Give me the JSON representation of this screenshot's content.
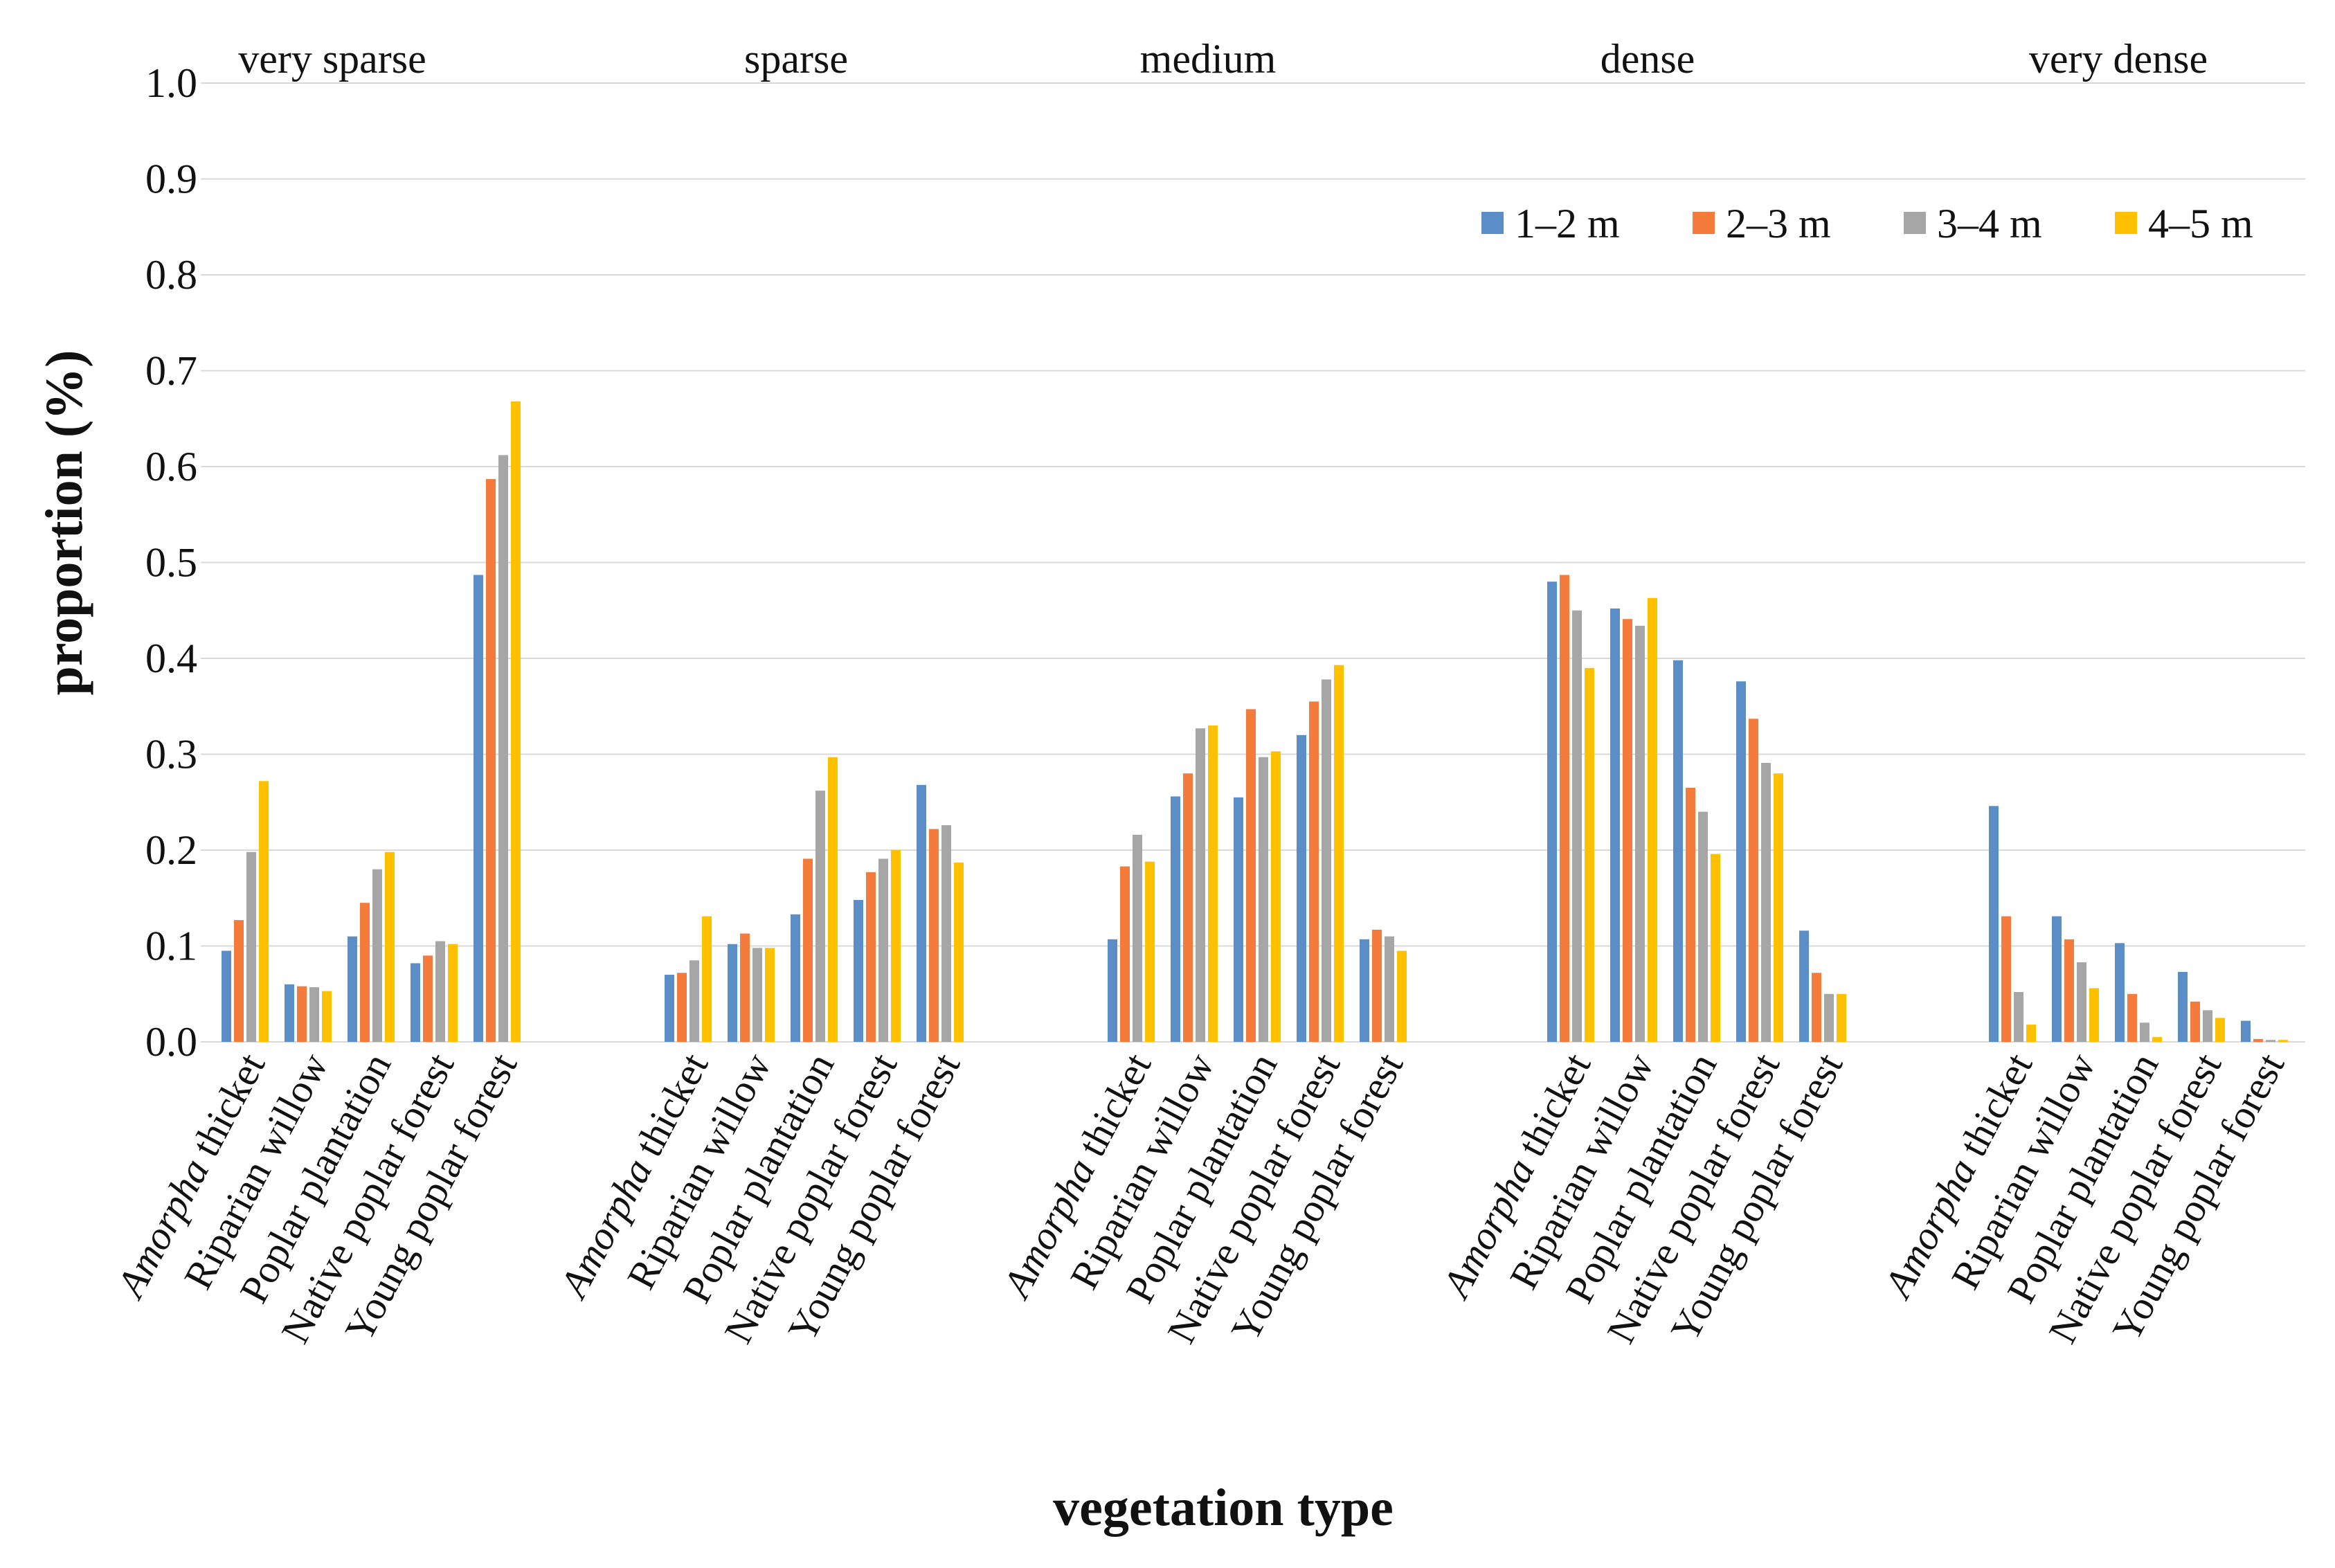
{
  "chart_data": {
    "type": "bar",
    "title": "",
    "xlabel": "vegetation type",
    "ylabel": "proportion (%)",
    "ylim": [
      0,
      1.0
    ],
    "yticks": [
      0.0,
      0.1,
      0.2,
      0.3,
      0.4,
      0.5,
      0.6,
      0.7,
      0.8,
      0.9,
      1.0
    ],
    "ytick_labels": [
      "0.0",
      "0.1",
      "0.2",
      "0.3",
      "0.4",
      "0.5",
      "0.6",
      "0.7",
      "0.8",
      "0.9",
      "1.0"
    ],
    "grid": true,
    "legend_position": "top-right",
    "categories": [
      "Amorpha thicket",
      "Riparian willow",
      "Poplar plantation",
      "Native poplar forest",
      "Young poplar forest"
    ],
    "category_parts": [
      {
        "italic": "Amorpha",
        "rest": " thicket"
      },
      {
        "italic": "",
        "rest": "Riparian willow"
      },
      {
        "italic": "",
        "rest": "Poplar plantation"
      },
      {
        "italic": "",
        "rest": "Native poplar forest"
      },
      {
        "italic": "",
        "rest": "Young poplar forest"
      }
    ],
    "series_colors": [
      "#5B8DC6",
      "#F47B3B",
      "#A6A6A6",
      "#FFC000"
    ],
    "groups": [
      {
        "label": "very sparse",
        "series": [
          {
            "name": "1–2 m",
            "values": [
              0.095,
              0.06,
              0.11,
              0.082,
              0.487
            ]
          },
          {
            "name": "2–3 m",
            "values": [
              0.127,
              0.058,
              0.145,
              0.09,
              0.587
            ]
          },
          {
            "name": "3–4 m",
            "values": [
              0.198,
              0.057,
              0.18,
              0.105,
              0.612
            ]
          },
          {
            "name": "4–5 m",
            "values": [
              0.272,
              0.053,
              0.198,
              0.102,
              0.668
            ]
          }
        ]
      },
      {
        "label": "sparse",
        "series": [
          {
            "name": "1–2 m",
            "values": [
              0.07,
              0.102,
              0.133,
              0.148,
              0.268
            ]
          },
          {
            "name": "2–3 m",
            "values": [
              0.072,
              0.113,
              0.191,
              0.177,
              0.222
            ]
          },
          {
            "name": "3–4 m",
            "values": [
              0.085,
              0.098,
              0.262,
              0.191,
              0.226
            ]
          },
          {
            "name": "4–5 m",
            "values": [
              0.131,
              0.098,
              0.297,
              0.2,
              0.187
            ]
          }
        ]
      },
      {
        "label": "medium",
        "series": [
          {
            "name": "1–2 m",
            "values": [
              0.107,
              0.256,
              0.255,
              0.32,
              0.107
            ]
          },
          {
            "name": "2–3 m",
            "values": [
              0.183,
              0.28,
              0.347,
              0.355,
              0.117
            ]
          },
          {
            "name": "3–4 m",
            "values": [
              0.216,
              0.327,
              0.297,
              0.378,
              0.11
            ]
          },
          {
            "name": "4–5 m",
            "values": [
              0.188,
              0.33,
              0.303,
              0.393,
              0.095
            ]
          }
        ]
      },
      {
        "label": "dense",
        "series": [
          {
            "name": "1–2 m",
            "values": [
              0.48,
              0.452,
              0.398,
              0.376,
              0.116
            ]
          },
          {
            "name": "2–3 m",
            "values": [
              0.487,
              0.441,
              0.265,
              0.337,
              0.072
            ]
          },
          {
            "name": "3–4 m",
            "values": [
              0.45,
              0.434,
              0.24,
              0.291,
              0.05
            ]
          },
          {
            "name": "4–5 m",
            "values": [
              0.39,
              0.463,
              0.196,
              0.28,
              0.05
            ]
          }
        ]
      },
      {
        "label": "very dense",
        "series": [
          {
            "name": "1–2 m",
            "values": [
              0.246,
              0.131,
              0.103,
              0.073,
              0.022
            ]
          },
          {
            "name": "2–3 m",
            "values": [
              0.131,
              0.107,
              0.05,
              0.042,
              0.003
            ]
          },
          {
            "name": "3–4 m",
            "values": [
              0.052,
              0.083,
              0.02,
              0.033,
              0.002
            ]
          },
          {
            "name": "4–5 m",
            "values": [
              0.018,
              0.056,
              0.005,
              0.025,
              0.002
            ]
          }
        ]
      }
    ],
    "legend": [
      "1–2 m",
      "2–3 m",
      "3–4 m",
      "4–5 m"
    ]
  }
}
